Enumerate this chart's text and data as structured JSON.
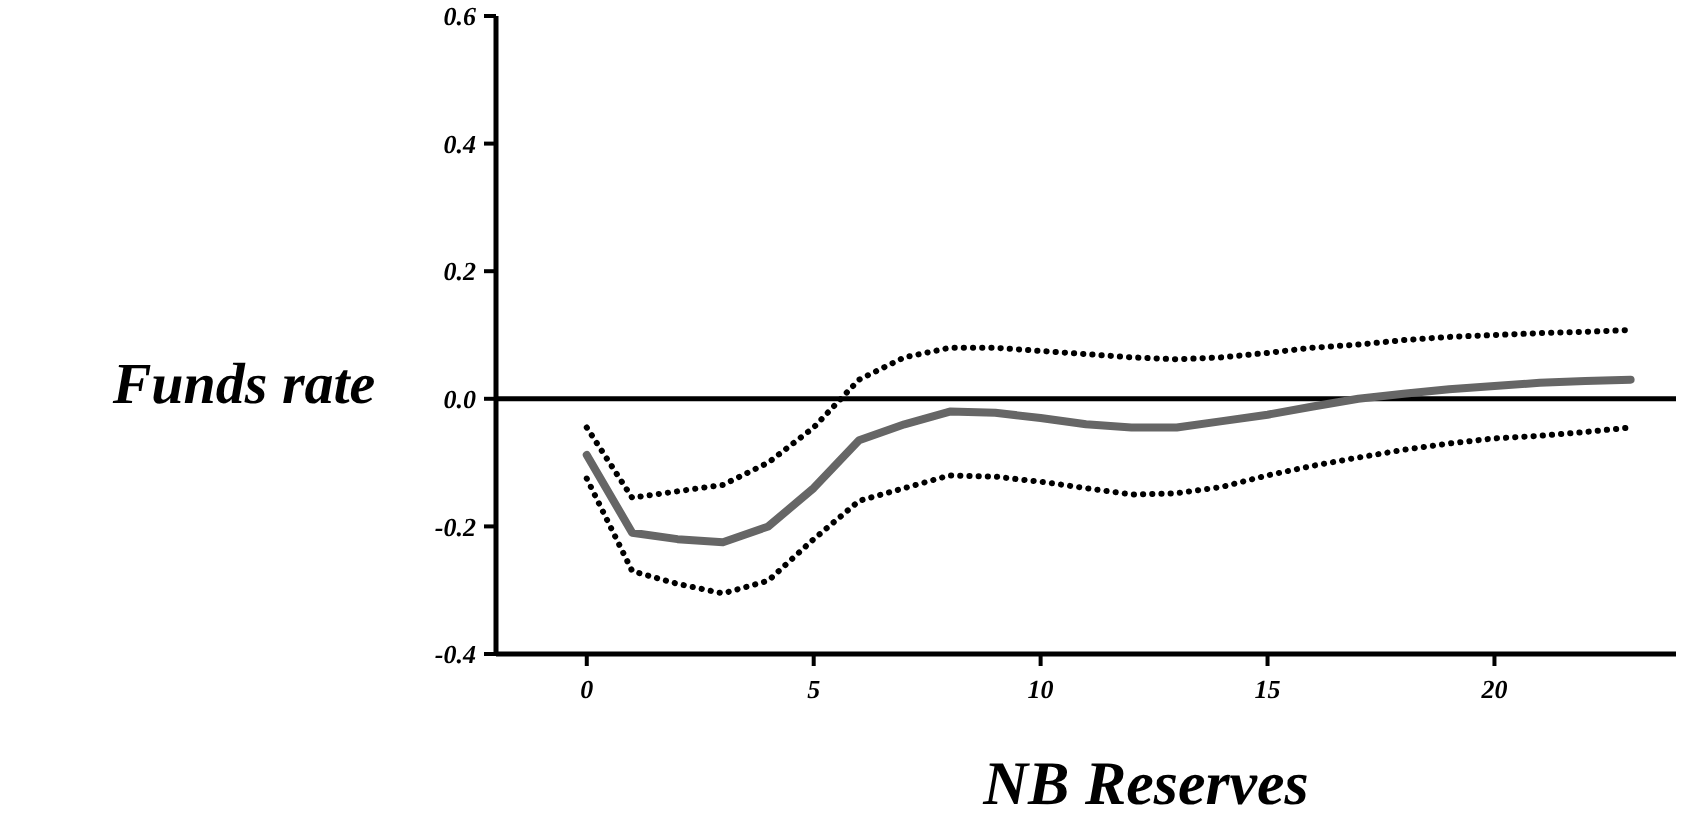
{
  "chart_data": {
    "type": "line",
    "xlabel": "NB Reserves",
    "ylabel": "Funds rate",
    "xlim": [
      -2,
      24
    ],
    "xticks": [
      0,
      5,
      10,
      15,
      20
    ],
    "ylim": [
      -0.4,
      0.6
    ],
    "yticks": [
      -0.4,
      -0.2,
      {
        "value": 0,
        "label": "0.0"
      },
      0.2,
      0.4,
      0.6
    ],
    "grid": false,
    "x": [
      0,
      1,
      2,
      3,
      4,
      5,
      6,
      7,
      8,
      9,
      10,
      11,
      12,
      13,
      14,
      15,
      16,
      17,
      18,
      19,
      20,
      21,
      22,
      23
    ],
    "series": [
      {
        "color": "#666666",
        "line_style": "solid",
        "values": [
          -0.088,
          -0.21,
          -0.22,
          -0.225,
          -0.2,
          -0.14,
          -0.065,
          -0.04,
          -0.02,
          -0.022,
          -0.03,
          -0.04,
          -0.045,
          -0.045,
          -0.035,
          -0.025,
          -0.012,
          0.0,
          0.008,
          0.015,
          0.02,
          0.025,
          0.028,
          0.03
        ]
      },
      {
        "color": "#000000",
        "line_style": "dotted",
        "values": [
          -0.045,
          -0.155,
          -0.145,
          -0.135,
          -0.1,
          -0.045,
          0.03,
          0.065,
          0.08,
          0.08,
          0.075,
          0.07,
          0.065,
          0.062,
          0.065,
          0.072,
          0.08,
          0.085,
          0.092,
          0.097,
          0.1,
          0.103,
          0.105,
          0.108
        ]
      },
      {
        "color": "#000000",
        "line_style": "dotted",
        "values": [
          -0.125,
          -0.27,
          -0.29,
          -0.305,
          -0.285,
          -0.22,
          -0.16,
          -0.14,
          -0.12,
          -0.122,
          -0.13,
          -0.14,
          -0.15,
          -0.148,
          -0.138,
          -0.12,
          -0.105,
          -0.092,
          -0.08,
          -0.07,
          -0.062,
          -0.058,
          -0.052,
          -0.045
        ]
      }
    ],
    "ref_lines": [
      {
        "axis": "y",
        "value": 0,
        "color": "#000000",
        "line_style": "solid"
      }
    ]
  }
}
